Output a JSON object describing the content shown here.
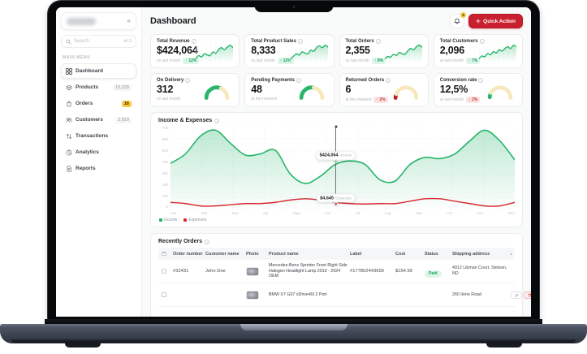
{
  "sidebar": {
    "collapse_icon": "«",
    "search": {
      "placeholder": "Search",
      "shortcut": "⌘ S"
    },
    "menu_label": "MAIN MENU",
    "items": [
      {
        "id": "dashboard",
        "label": "Dashboard",
        "icon": "grid-icon",
        "badge": "",
        "badge_style": "",
        "active": true
      },
      {
        "id": "products",
        "label": "Products",
        "icon": "box-icon",
        "badge": "16,339",
        "badge_style": "muted",
        "active": false
      },
      {
        "id": "orders",
        "label": "Orders",
        "icon": "bag-icon",
        "badge": "16",
        "badge_style": "yellow",
        "active": false
      },
      {
        "id": "customers",
        "label": "Customers",
        "icon": "users-icon",
        "badge": "2,819",
        "badge_style": "muted",
        "active": false
      },
      {
        "id": "transactions",
        "label": "Transactions",
        "icon": "transactions-icon",
        "badge": "",
        "badge_style": "",
        "active": false
      },
      {
        "id": "analytics",
        "label": "Analytics",
        "icon": "analytics-icon",
        "badge": "",
        "badge_style": "",
        "active": false
      },
      {
        "id": "reports",
        "label": "Reports",
        "icon": "reports-icon",
        "badge": "",
        "badge_style": "",
        "active": false
      }
    ]
  },
  "header": {
    "title": "Dashboard",
    "notification_count": "9",
    "quick_action_label": "Quick Action"
  },
  "stat_cards": [
    {
      "title": "Total Revenue",
      "value": "$424,064",
      "caption": "vs last month",
      "delta": "↑ 12%",
      "delta_type": "positive",
      "sparkline": [
        38,
        43,
        41,
        46,
        44,
        43,
        49,
        47,
        53,
        56,
        53,
        57,
        60,
        56
      ]
    },
    {
      "title": "Total Product Sales",
      "value": "8,333",
      "caption": "vs last month",
      "delta": "↑ 12%",
      "delta_type": "positive",
      "sparkline": [
        36,
        40,
        44,
        42,
        47,
        45,
        44,
        50,
        48,
        54,
        57,
        54,
        58,
        55
      ]
    },
    {
      "title": "Total Orders",
      "value": "2,355",
      "caption": "vs last month",
      "delta": "↑ 9%",
      "delta_type": "positive",
      "sparkline": [
        34,
        38,
        37,
        42,
        40,
        45,
        43,
        42,
        48,
        52,
        50,
        55,
        58,
        54
      ]
    },
    {
      "title": "Total Customers",
      "value": "2,096",
      "caption": "vs last month",
      "delta": "↑ 7%",
      "delta_type": "positive",
      "sparkline": [
        37,
        41,
        40,
        45,
        43,
        48,
        46,
        51,
        49,
        53,
        56,
        53,
        58,
        56
      ]
    }
  ],
  "gauge_cards": [
    {
      "title": "On Delivery",
      "value": "312",
      "caption": "vs last month",
      "delta": "",
      "delta_type": "",
      "segments": [
        {
          "color": "#29b56c",
          "from": 0,
          "to": 62
        },
        {
          "color": "#f6e8bc",
          "from": 63,
          "to": 100
        }
      ]
    },
    {
      "title": "Pending Payments",
      "value": "48",
      "caption": "at the moment",
      "delta": "",
      "delta_type": "",
      "segments": [
        {
          "color": "#29b56c",
          "from": 0,
          "to": 55
        },
        {
          "color": "#f6e8bc",
          "from": 56,
          "to": 100
        }
      ]
    },
    {
      "title": "Returned Orders",
      "value": "6",
      "caption": "at the moment",
      "delta": "↑ 2%",
      "delta_type": "negative",
      "segments": [
        {
          "color": "#b92121",
          "from": 0,
          "to": 7
        },
        {
          "color": "#f6e8bc",
          "from": 12,
          "to": 100
        }
      ]
    },
    {
      "title": "Conversion rate",
      "value": "12,5%",
      "caption": "vs last month",
      "delta": "↓ 2%",
      "delta_type": "negative",
      "segments": [
        {
          "color": "#29b56c",
          "from": 2,
          "to": 11
        },
        {
          "color": "#f6e8bc",
          "from": 16,
          "to": 100
        }
      ]
    }
  ],
  "chart_data": {
    "type": "area",
    "title": "Income & Expenses",
    "x_labels": [
      "Jan",
      "Feb",
      "Mar",
      "Apr",
      "May",
      "Jun",
      "Jul",
      "Aug",
      "Sep",
      "Oct",
      "Nov",
      "Dec"
    ],
    "y_tick_labels": [
      "70k",
      "60k",
      "50k",
      "40k",
      "30k",
      "20k",
      "10k",
      "0"
    ],
    "ylim": [
      0,
      70000
    ],
    "grid": true,
    "legend_position": "bottom-left",
    "series": [
      {
        "name": "Income",
        "color": "#25b56a",
        "fill": true,
        "values_k": [
          39,
          47,
          62,
          67,
          56,
          46,
          47,
          50,
          30,
          22,
          28,
          38,
          41,
          38,
          25,
          24,
          38,
          44,
          43,
          47,
          58,
          67,
          58,
          42
        ]
      },
      {
        "name": "Expenses",
        "color": "#d7282f",
        "fill": false,
        "values_k": [
          6,
          5,
          3,
          3,
          4,
          5,
          5,
          6,
          8,
          9,
          8,
          6,
          5,
          4.6,
          5,
          5,
          7,
          9,
          9,
          7,
          5,
          3,
          3,
          6
        ]
      }
    ],
    "marker": {
      "x_frac": 0.48,
      "income_value_k": 40.5,
      "expenses_value_k": 4.6,
      "income_text": "$424,064",
      "income_label": "Income",
      "expenses_text": "$4,645",
      "expenses_label": "Expenses"
    }
  },
  "orders_table": {
    "title": "Recently Orders",
    "columns": [
      "Order number",
      "Customer name",
      "Photo",
      "Product name",
      "Label",
      "Cost",
      "Status",
      "Shipping address",
      "Actions"
    ],
    "rows": [
      {
        "order_number": "#32431",
        "customer_name": "John Doe",
        "product_name": "Mercedes-Benz Sprinter Front Right Side Halogen Headlight Lamp 2019 - 2024 OEM",
        "label": "#177802443659",
        "cost": "$154.99",
        "status": "Paid",
        "shipping_address": "4912 Libman Court, Stetson, ND",
        "show_actions": false
      },
      {
        "order_number": "",
        "customer_name": "",
        "product_name": "BMW X7 G07 xDrive40i 2 Port",
        "label": "",
        "cost": "",
        "status": "",
        "shipping_address": "260 Ilene Road",
        "show_actions": true
      }
    ]
  },
  "colors": {
    "accent_red": "#c91f2e",
    "green": "#25b56a",
    "yellow": "#f6c93f",
    "gauge_track": "#f6e8bc"
  }
}
